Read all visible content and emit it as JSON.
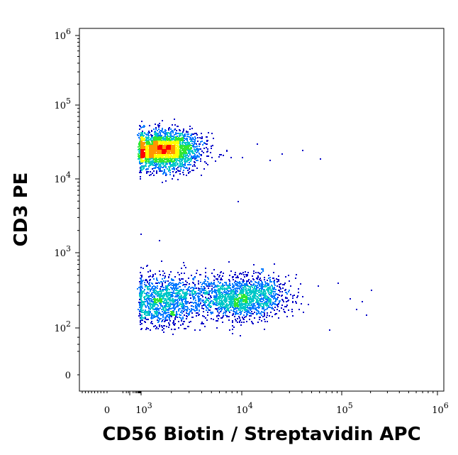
{
  "chart_data": {
    "type": "scatter",
    "style": "flow-cytometry density dot plot",
    "xlabel": "CD56 Biotin / Streptavidin APC",
    "ylabel": "CD3 PE",
    "x_scale": "biexponential",
    "y_scale": "biexponential",
    "xlim": [
      -200,
      1000000
    ],
    "ylim": [
      -30,
      1000000
    ],
    "x_ticks": [
      {
        "value": 0,
        "base": "0",
        "exp": ""
      },
      {
        "value": 1000,
        "base": "10",
        "exp": "3"
      },
      {
        "value": 10000,
        "base": "10",
        "exp": "4"
      },
      {
        "value": 100000,
        "base": "10",
        "exp": "5"
      },
      {
        "value": 1000000,
        "base": "10",
        "exp": "6"
      }
    ],
    "y_ticks": [
      {
        "value": 0,
        "base": "0",
        "exp": ""
      },
      {
        "value": 100,
        "base": "10",
        "exp": "2"
      },
      {
        "value": 1000,
        "base": "10",
        "exp": "3"
      },
      {
        "value": 10000,
        "base": "10",
        "exp": "4"
      },
      {
        "value": 100000,
        "base": "10",
        "exp": "5"
      },
      {
        "value": 1000000,
        "base": "10",
        "exp": "6"
      }
    ],
    "grid": false,
    "legend": "none",
    "density_colors": [
      "#0000c8",
      "#0078ff",
      "#00c8c8",
      "#32e632",
      "#ffff00",
      "#ff9600",
      "#ff0000"
    ],
    "populations": [
      {
        "center_x": 1600,
        "center_y": 25000,
        "spread_x_decades": 0.18,
        "spread_y_decades": 0.13,
        "count": 2600
      },
      {
        "center_x": 1600,
        "center_y": 230,
        "spread_x_decades": 0.17,
        "spread_y_decades": 0.17,
        "count": 1100
      },
      {
        "center_x": 7500,
        "center_y": 260,
        "spread_x_decades": 0.28,
        "spread_y_decades": 0.15,
        "count": 1300
      },
      {
        "center_x": 13000,
        "center_y": 270,
        "spread_x_decades": 0.18,
        "spread_y_decades": 0.13,
        "count": 500
      }
    ],
    "scattered_events": [
      {
        "x": 7000,
        "y": 25000
      },
      {
        "x": 10000,
        "y": 20000
      },
      {
        "x": 14000,
        "y": 30000
      },
      {
        "x": 19000,
        "y": 18000
      },
      {
        "x": 25000,
        "y": 22000
      },
      {
        "x": 40000,
        "y": 25000
      },
      {
        "x": 60000,
        "y": 19000
      },
      {
        "x": 9000,
        "y": 5000
      },
      {
        "x": 1500,
        "y": 1500
      },
      {
        "x": 850,
        "y": 1800
      },
      {
        "x": 120000,
        "y": 250
      },
      {
        "x": 160000,
        "y": 230
      },
      {
        "x": 90000,
        "y": 400
      },
      {
        "x": 200000,
        "y": 320
      },
      {
        "x": 140000,
        "y": 180
      },
      {
        "x": 180000,
        "y": 150
      },
      {
        "x": 75000,
        "y": 90
      },
      {
        "x": 9500,
        "y": 50
      },
      {
        "x": 8000,
        "y": 60
      }
    ]
  }
}
